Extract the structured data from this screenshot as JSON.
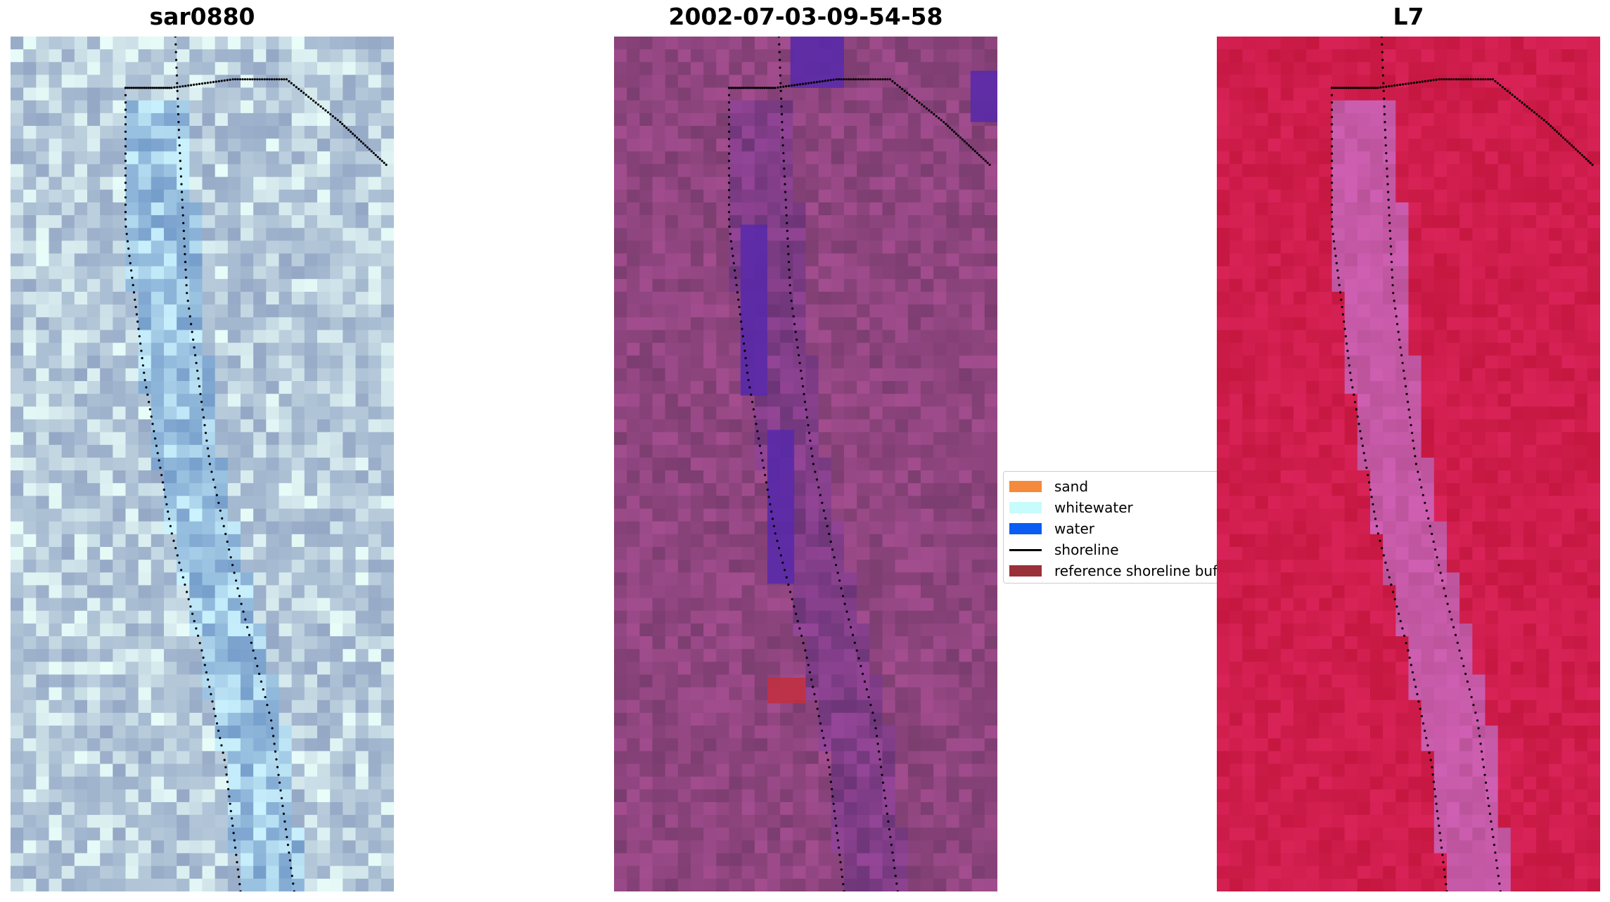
{
  "panels": [
    {
      "id": "left",
      "title": "sar0880"
    },
    {
      "id": "middle",
      "title": "2002-07-03-09-54-58"
    },
    {
      "id": "right",
      "title": "L7"
    }
  ],
  "legend": {
    "items": [
      {
        "label": "sand",
        "kind": "patch",
        "color": "#f38a3c"
      },
      {
        "label": "whitewater",
        "kind": "patch",
        "color": "#c8fbfb"
      },
      {
        "label": "water",
        "kind": "patch",
        "color": "#0a5cf2"
      },
      {
        "label": "shoreline",
        "kind": "line",
        "color": "#000000"
      },
      {
        "label": "reference shoreline buffer",
        "kind": "patch",
        "color": "#9a3038"
      }
    ]
  },
  "colors": {
    "left_base": "#a8bcd2",
    "middle_base": "#8f457f",
    "right_base": "#cf1d4c",
    "classified_water_overlay": "#5a2aa8",
    "reference_buffer_overlay": "#c03040",
    "shoreline_dots": "#000000"
  }
}
